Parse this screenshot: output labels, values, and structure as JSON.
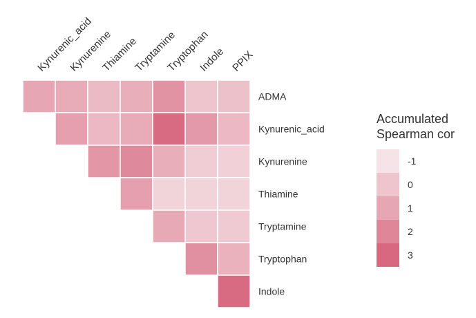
{
  "chart_data": {
    "type": "heatmap",
    "columns": [
      "Kynurenic_acid",
      "Kynurenine",
      "Thiamine",
      "Tryptamine",
      "Tryptophan",
      "Indole",
      "PPIX"
    ],
    "rows": [
      "ADMA",
      "Kynurenic_acid",
      "Kynurenine",
      "Thiamine",
      "Tryptamine",
      "Tryptophan",
      "Indole"
    ],
    "values": [
      [
        1.0,
        0.8,
        0.3,
        0.7,
        1.6,
        0.0,
        0.1
      ],
      [
        null,
        1.2,
        0.4,
        0.8,
        2.9,
        1.4,
        0.4
      ],
      [
        null,
        null,
        1.5,
        1.9,
        0.7,
        -0.3,
        -0.4
      ],
      [
        null,
        null,
        null,
        1.2,
        -0.5,
        -0.5,
        -0.5
      ],
      [
        null,
        null,
        null,
        null,
        0.9,
        -0.1,
        -0.2
      ],
      [
        null,
        null,
        null,
        null,
        null,
        1.7,
        0.6
      ],
      [
        null,
        null,
        null,
        null,
        null,
        null,
        2.9
      ]
    ],
    "legend": {
      "title_lines": [
        "Accumulated",
        "Spearman cor"
      ],
      "ticks": [
        "-1",
        "0",
        "1",
        "2",
        "3"
      ],
      "tick_values": [
        -1,
        0,
        1,
        2,
        3
      ],
      "placement": "right"
    },
    "color_low": "#f5e3e7",
    "color_high": "#d7687f",
    "value_range": [
      -1,
      3
    ]
  }
}
